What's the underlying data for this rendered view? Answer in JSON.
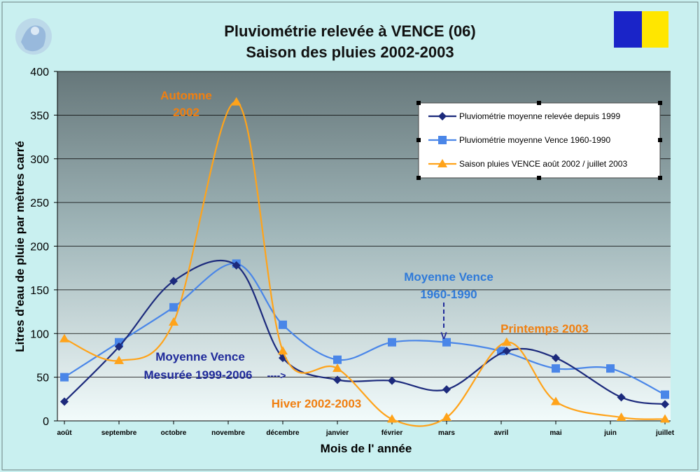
{
  "colors": {
    "series_dark": "#1c2a7c",
    "series_blue": "#4a86e8",
    "series_orange": "#ffa31a",
    "annot_orange": "#f07f10",
    "annot_navy": "#1f2a9a",
    "annot_blue": "#2f7ad9",
    "flag_blue": "#1a24c8",
    "flag_yellow": "#ffe600"
  },
  "chart_data": {
    "type": "line",
    "title": "Pluviométrie relevée à VENCE (06)",
    "subtitle": "Saison des pluies 2002-2003",
    "xlabel": "Mois de l' année",
    "ylabel": "Litres d'eau de pluie par mètres carré",
    "ylim": [
      0,
      400
    ],
    "yticks": [
      "0",
      "50",
      "100",
      "150",
      "200",
      "250",
      "300",
      "350",
      "400"
    ],
    "grid": true,
    "legend_position": "top-right",
    "categories": [
      "août",
      "septembre",
      "octobre",
      "novembre",
      "décembre",
      "janvier",
      "février",
      "mars",
      "avril",
      "mai",
      "juin",
      "juillet"
    ],
    "series": [
      {
        "name": "Pluviométrie moyenne relevée depuis 1999",
        "marker": "diamond",
        "x": [
          0,
          1,
          2,
          3.15,
          4,
          5,
          6,
          7,
          8.1,
          9,
          10.2,
          11
        ],
        "values": [
          22,
          85,
          160,
          178,
          72,
          47,
          46,
          36,
          80,
          72,
          27,
          19
        ]
      },
      {
        "name": "Pluviométrie  moyenne Vence 1960-1990",
        "marker": "square",
        "x": [
          0,
          1,
          2,
          3.15,
          4,
          5,
          6,
          7,
          8,
          9,
          10,
          11
        ],
        "values": [
          50,
          90,
          130,
          180,
          110,
          70,
          90,
          90,
          80,
          60,
          60,
          30
        ]
      },
      {
        "name": "Saison pluies VENCE août 2002 / juillet 2003",
        "marker": "triangle",
        "x": [
          0,
          1,
          2,
          3.15,
          4,
          5,
          6,
          7,
          8.1,
          9,
          10.2,
          11
        ],
        "values": [
          94,
          69,
          113,
          365,
          80,
          60,
          2,
          4,
          90,
          22,
          4,
          2
        ]
      }
    ],
    "annotations": {
      "automne": [
        "Automne",
        "2002"
      ],
      "hiver": "Hiver 2002-2003",
      "printemps": "Printemps  2003",
      "moyenne_1960": [
        "Moyenne Vence",
        "1960-1990"
      ],
      "moyenne_1960_arrow": "V",
      "mesuree": [
        "Moyenne Vence",
        "Mesurée 1999-2006"
      ],
      "mesuree_arrow": "---->"
    }
  }
}
